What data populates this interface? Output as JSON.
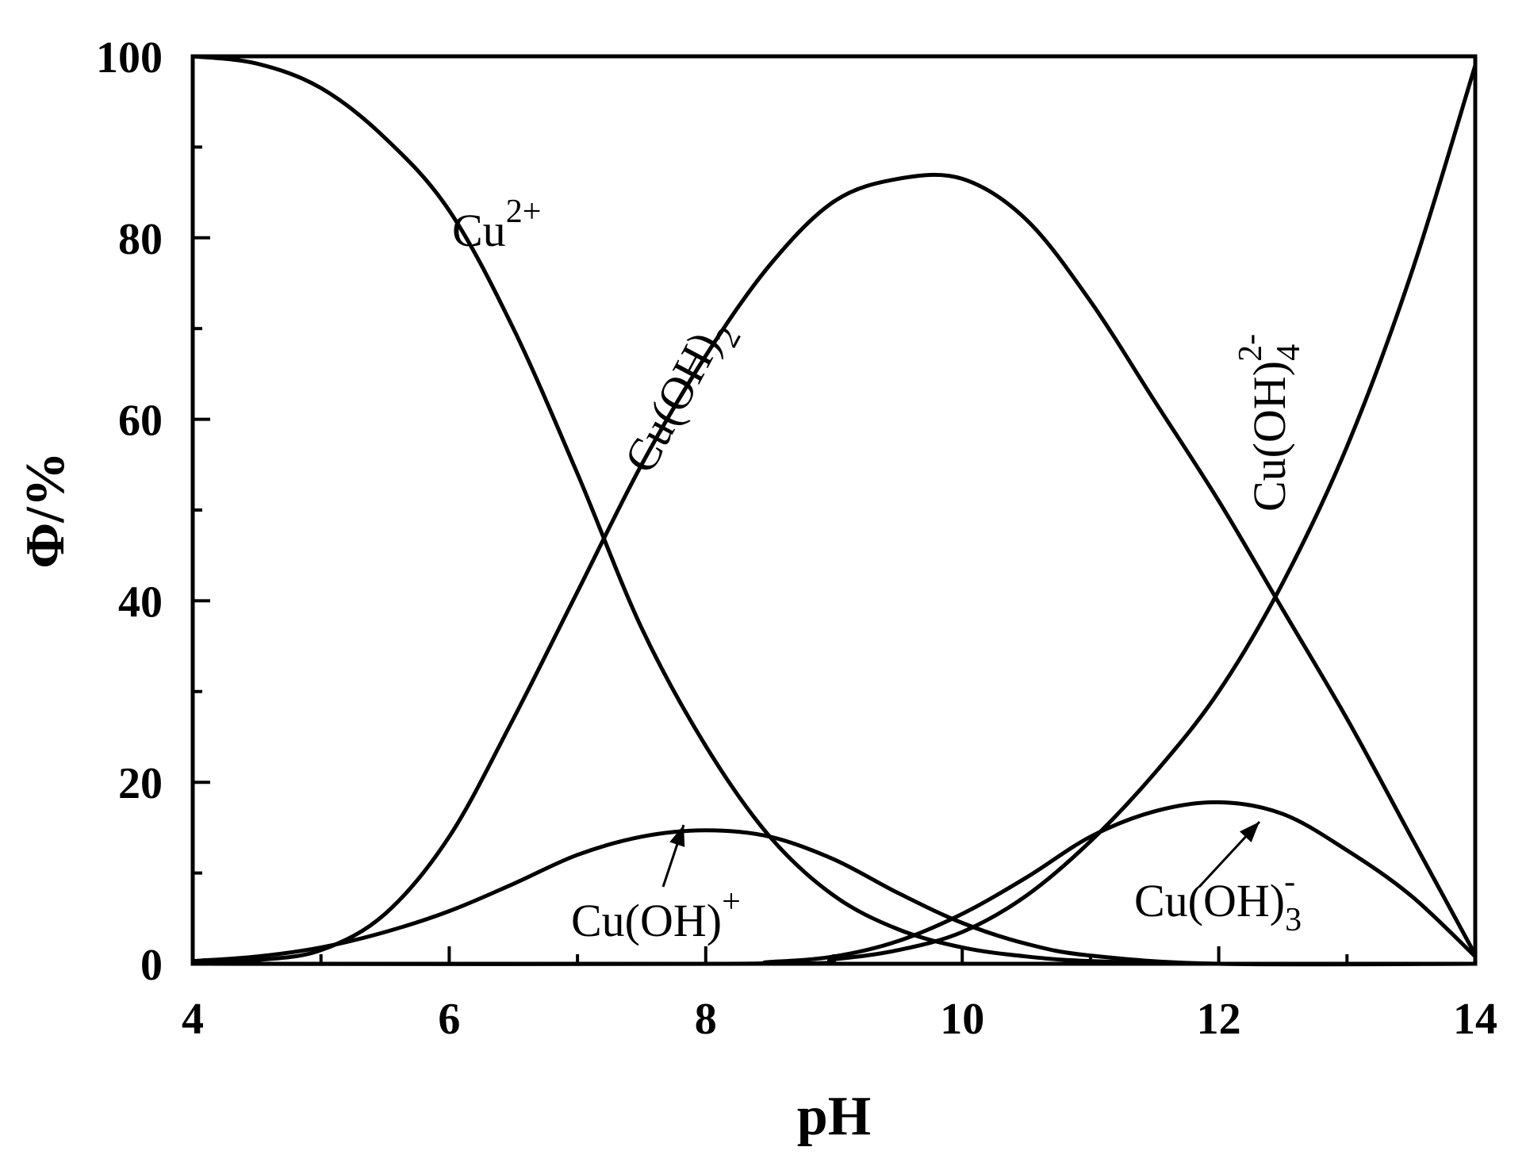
{
  "chart_data": {
    "type": "line",
    "xlabel": "pH",
    "ylabel": "Φ/%",
    "xlim": [
      4,
      14
    ],
    "ylim": [
      0,
      100
    ],
    "x_ticks": [
      "4",
      "6",
      "8",
      "10",
      "12",
      "14"
    ],
    "y_ticks": [
      "0",
      "20",
      "40",
      "60",
      "80",
      "100"
    ],
    "grid": false,
    "legend": "none",
    "line_color": "#000000",
    "series": [
      {
        "name": "Cu2+",
        "label_base": "Cu",
        "label_sup": "2+",
        "x": [
          4,
          4.5,
          5,
          5.5,
          6,
          6.5,
          7,
          7.5,
          8,
          8.5,
          9,
          9.5,
          10,
          10.5,
          11,
          12,
          14
        ],
        "y": [
          100,
          99.2,
          96.5,
          91,
          83,
          70,
          54,
          37,
          24,
          14,
          7.5,
          3.8,
          1.8,
          0.8,
          0.3,
          0,
          0
        ]
      },
      {
        "name": "Cu(OH)+",
        "label_base": "Cu(OH)",
        "label_sup": "+",
        "x": [
          4,
          4.5,
          5,
          5.5,
          6,
          6.5,
          7,
          7.5,
          8,
          8.5,
          9,
          9.5,
          10,
          10.5,
          11,
          12,
          14
        ],
        "y": [
          0.3,
          0.8,
          1.8,
          3.5,
          5.8,
          8.8,
          12,
          14,
          14.7,
          14,
          11.5,
          7.8,
          4.5,
          2.2,
          0.9,
          0,
          0
        ]
      },
      {
        "name": "Cu(OH)2",
        "label_base": "Cu(OH)",
        "label_sub": "2",
        "x": [
          4,
          4.5,
          5,
          5.5,
          6,
          6.5,
          7,
          7.5,
          8,
          8.5,
          9,
          9.5,
          10,
          10.5,
          11,
          11.5,
          12,
          12.5,
          13,
          13.5,
          14
        ],
        "y": [
          0,
          0.4,
          1.5,
          5.5,
          14,
          27,
          41,
          55,
          67,
          77,
          84,
          86.5,
          86.5,
          82,
          73,
          62,
          51,
          39,
          27,
          14,
          1
        ]
      },
      {
        "name": "Cu(OH)3-",
        "label_base": "Cu(OH)",
        "label_sub": "3",
        "label_sup": "-",
        "x": [
          4,
          8,
          8.5,
          9,
          9.5,
          10,
          10.5,
          11,
          11.5,
          12,
          12.5,
          13,
          13.5,
          14
        ],
        "y": [
          0,
          0,
          0.2,
          0.8,
          2.5,
          5.5,
          9.5,
          14,
          16.8,
          17.8,
          16.5,
          12.5,
          7.5,
          0.8
        ]
      },
      {
        "name": "Cu(OH)4 2-",
        "label_base": "Cu(OH)",
        "label_sub": "4",
        "label_sup": "2-",
        "x": [
          4,
          8.5,
          9,
          9.5,
          10,
          10.5,
          11,
          11.5,
          12,
          12.5,
          13,
          13.5,
          14
        ],
        "y": [
          0,
          0,
          0.5,
          1.5,
          3.5,
          7.5,
          13.5,
          21,
          30,
          42,
          57,
          76,
          99
        ]
      }
    ]
  }
}
